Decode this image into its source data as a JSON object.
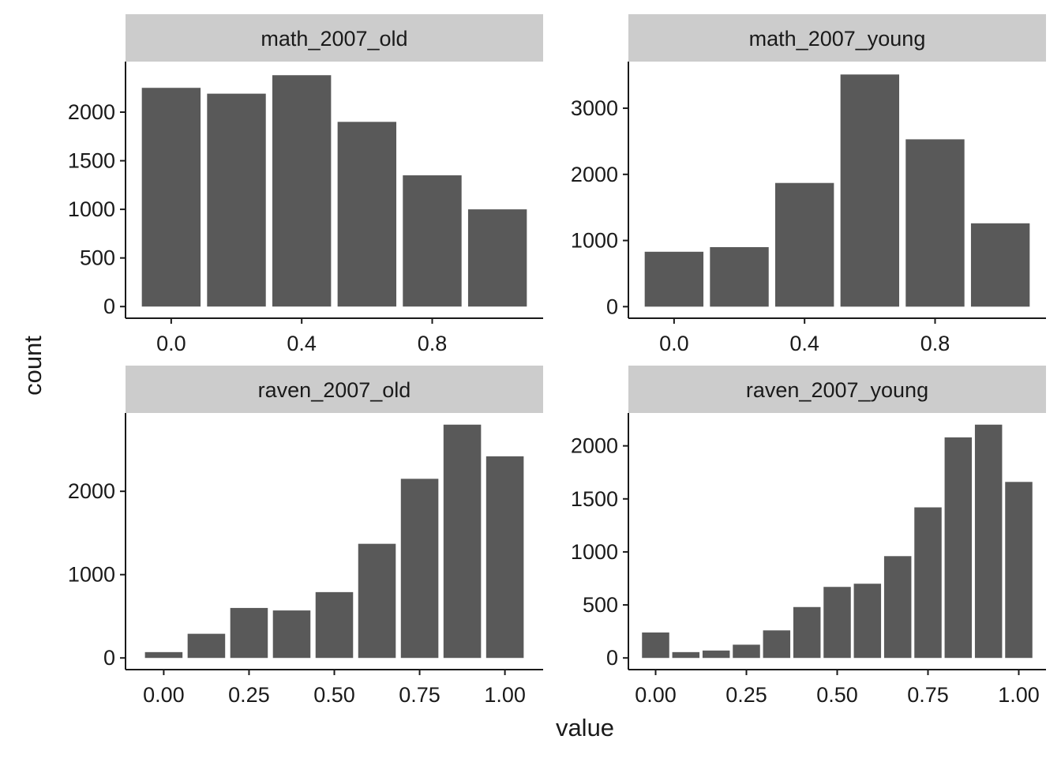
{
  "figure": {
    "xlabel": "value",
    "ylabel": "count"
  },
  "chart_data": [
    {
      "type": "bar",
      "panel": "math_2007_old",
      "title": "math_2007_old",
      "bar_width": 0.18,
      "x": [
        0.0,
        0.2,
        0.4,
        0.6,
        0.8,
        1.0
      ],
      "values": [
        2250,
        2190,
        2380,
        1900,
        1350,
        1000
      ],
      "xlim": [
        -0.14,
        1.14
      ],
      "ylim": [
        -120,
        2520
      ],
      "xticks": [
        0.0,
        0.4,
        0.8
      ],
      "xtick_labels": [
        "0.0",
        "0.4",
        "0.8"
      ],
      "yticks": [
        0,
        500,
        1000,
        1500,
        2000
      ],
      "ytick_labels": [
        "0",
        "500",
        "1000",
        "1500",
        "2000"
      ]
    },
    {
      "type": "bar",
      "panel": "math_2007_young",
      "title": "math_2007_young",
      "bar_width": 0.18,
      "x": [
        0.0,
        0.2,
        0.4,
        0.6,
        0.8,
        1.0
      ],
      "values": [
        830,
        900,
        1870,
        3510,
        2530,
        1260
      ],
      "xlim": [
        -0.14,
        1.14
      ],
      "ylim": [
        -175,
        3705
      ],
      "xticks": [
        0.0,
        0.4,
        0.8
      ],
      "xtick_labels": [
        "0.0",
        "0.4",
        "0.8"
      ],
      "yticks": [
        0,
        1000,
        2000,
        3000
      ],
      "ytick_labels": [
        "0",
        "1000",
        "2000",
        "3000"
      ]
    },
    {
      "type": "bar",
      "panel": "raven_2007_old",
      "title": "raven_2007_old",
      "bar_width": 0.11,
      "x": [
        0.0,
        0.125,
        0.25,
        0.375,
        0.5,
        0.625,
        0.75,
        0.875,
        1.0
      ],
      "values": [
        70,
        290,
        600,
        570,
        790,
        1370,
        2150,
        2800,
        2420
      ],
      "xlim": [
        -0.112,
        1.112
      ],
      "ylim": [
        -140,
        2940
      ],
      "xticks": [
        0.0,
        0.25,
        0.5,
        0.75,
        1.0
      ],
      "xtick_labels": [
        "0.00",
        "0.25",
        "0.50",
        "0.75",
        "1.00"
      ],
      "yticks": [
        0,
        1000,
        2000
      ],
      "ytick_labels": [
        "0",
        "1000",
        "2000"
      ]
    },
    {
      "type": "bar",
      "panel": "raven_2007_young",
      "title": "raven_2007_young",
      "bar_width": 0.075,
      "x": [
        0.0,
        0.0833,
        0.1667,
        0.25,
        0.3333,
        0.4167,
        0.5,
        0.5833,
        0.6667,
        0.75,
        0.8333,
        0.9167,
        1.0
      ],
      "values": [
        240,
        55,
        70,
        125,
        260,
        480,
        670,
        700,
        960,
        1420,
        2080,
        2200,
        1660
      ],
      "xlim": [
        -0.075,
        1.075
      ],
      "ylim": [
        -110,
        2310
      ],
      "xticks": [
        0.0,
        0.25,
        0.5,
        0.75,
        1.0
      ],
      "xtick_labels": [
        "0.00",
        "0.25",
        "0.50",
        "0.75",
        "1.00"
      ],
      "yticks": [
        0,
        500,
        1000,
        1500,
        2000
      ],
      "ytick_labels": [
        "0",
        "500",
        "1000",
        "1500",
        "2000"
      ]
    }
  ]
}
